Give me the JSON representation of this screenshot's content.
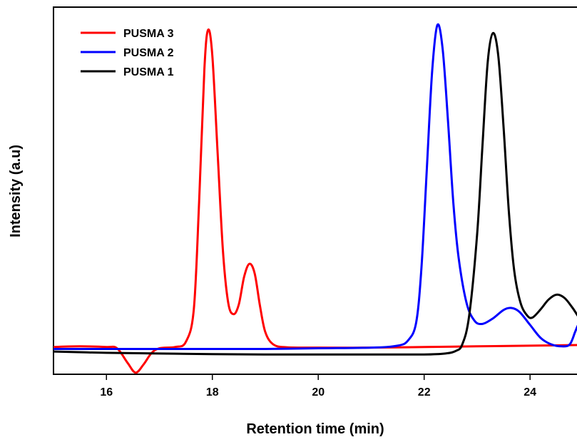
{
  "chart_data": {
    "type": "line",
    "xlabel": "Retention time (min)",
    "ylabel": "Intensity (a.u)",
    "xlim": [
      15,
      24.9
    ],
    "ylim": [
      -0.08,
      1.05
    ],
    "x_ticks": [
      16,
      18,
      20,
      22,
      24
    ],
    "y_ticks_shown": false,
    "legend_position": "top-left",
    "series": [
      {
        "name": "PUSMA 3",
        "color": "#ff0000",
        "points": [
          [
            15.0,
            0.004
          ],
          [
            15.5,
            0.006
          ],
          [
            16.0,
            0.004
          ],
          [
            16.2,
            0.0
          ],
          [
            16.4,
            -0.045
          ],
          [
            16.55,
            -0.075
          ],
          [
            16.7,
            -0.05
          ],
          [
            16.85,
            -0.015
          ],
          [
            17.0,
            0.0
          ],
          [
            17.3,
            0.004
          ],
          [
            17.5,
            0.02
          ],
          [
            17.65,
            0.12
          ],
          [
            17.75,
            0.45
          ],
          [
            17.85,
            0.86
          ],
          [
            17.92,
            0.98
          ],
          [
            18.0,
            0.9
          ],
          [
            18.1,
            0.6
          ],
          [
            18.2,
            0.3
          ],
          [
            18.3,
            0.14
          ],
          [
            18.4,
            0.105
          ],
          [
            18.5,
            0.135
          ],
          [
            18.6,
            0.22
          ],
          [
            18.7,
            0.26
          ],
          [
            18.8,
            0.23
          ],
          [
            18.9,
            0.13
          ],
          [
            19.0,
            0.05
          ],
          [
            19.15,
            0.012
          ],
          [
            19.4,
            0.003
          ],
          [
            20.0,
            0.002
          ],
          [
            21.0,
            0.002
          ],
          [
            22.0,
            0.004
          ],
          [
            23.0,
            0.006
          ],
          [
            24.0,
            0.008
          ],
          [
            24.9,
            0.01
          ]
        ]
      },
      {
        "name": "PUSMA 2",
        "color": "#0000ff",
        "points": [
          [
            15.0,
            -0.002
          ],
          [
            16.0,
            -0.002
          ],
          [
            17.0,
            -0.002
          ],
          [
            18.0,
            -0.002
          ],
          [
            19.0,
            -0.002
          ],
          [
            20.0,
            0.0
          ],
          [
            21.0,
            0.002
          ],
          [
            21.5,
            0.008
          ],
          [
            21.7,
            0.025
          ],
          [
            21.85,
            0.08
          ],
          [
            21.95,
            0.25
          ],
          [
            22.05,
            0.55
          ],
          [
            22.15,
            0.85
          ],
          [
            22.25,
            0.995
          ],
          [
            22.35,
            0.92
          ],
          [
            22.45,
            0.7
          ],
          [
            22.55,
            0.45
          ],
          [
            22.65,
            0.28
          ],
          [
            22.8,
            0.14
          ],
          [
            22.95,
            0.085
          ],
          [
            23.1,
            0.075
          ],
          [
            23.3,
            0.092
          ],
          [
            23.5,
            0.118
          ],
          [
            23.65,
            0.124
          ],
          [
            23.8,
            0.112
          ],
          [
            24.0,
            0.072
          ],
          [
            24.2,
            0.032
          ],
          [
            24.4,
            0.012
          ],
          [
            24.6,
            0.006
          ],
          [
            24.75,
            0.012
          ],
          [
            24.85,
            0.05
          ],
          [
            24.9,
            0.07
          ]
        ]
      },
      {
        "name": "PUSMA 1",
        "color": "#000000",
        "points": [
          [
            15.0,
            -0.01
          ],
          [
            16.0,
            -0.014
          ],
          [
            17.0,
            -0.016
          ],
          [
            18.0,
            -0.018
          ],
          [
            19.0,
            -0.019
          ],
          [
            20.0,
            -0.019
          ],
          [
            21.0,
            -0.019
          ],
          [
            22.0,
            -0.019
          ],
          [
            22.4,
            -0.016
          ],
          [
            22.6,
            -0.008
          ],
          [
            22.72,
            0.012
          ],
          [
            22.85,
            0.1
          ],
          [
            23.0,
            0.35
          ],
          [
            23.1,
            0.62
          ],
          [
            23.2,
            0.88
          ],
          [
            23.3,
            0.97
          ],
          [
            23.4,
            0.9
          ],
          [
            23.5,
            0.68
          ],
          [
            23.6,
            0.42
          ],
          [
            23.7,
            0.24
          ],
          [
            23.82,
            0.14
          ],
          [
            23.95,
            0.1
          ],
          [
            24.05,
            0.095
          ],
          [
            24.2,
            0.12
          ],
          [
            24.35,
            0.15
          ],
          [
            24.5,
            0.165
          ],
          [
            24.65,
            0.155
          ],
          [
            24.8,
            0.125
          ],
          [
            24.9,
            0.1
          ]
        ]
      }
    ]
  }
}
